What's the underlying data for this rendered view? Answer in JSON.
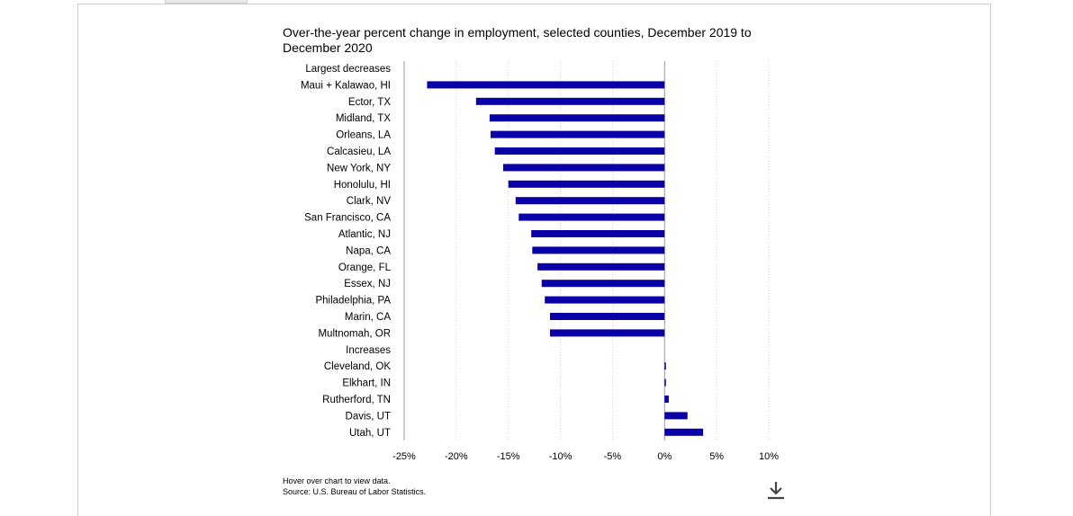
{
  "chart_data": {
    "type": "bar",
    "orientation": "horizontal",
    "title": "Over-the-year percent change in employment, selected counties, December 2019 to December 2020",
    "xlim": [
      -25,
      10
    ],
    "xticks": [
      "-25%",
      "-20%",
      "-15%",
      "-10%",
      "-5%",
      "0%",
      "5%",
      "10%"
    ],
    "grid": "vertical dotted",
    "bar_color": "#0a00a8",
    "rows": [
      {
        "label": "Largest decreases",
        "value": null,
        "header": true
      },
      {
        "label": "Maui + Kalawao, HI",
        "value": -22.8
      },
      {
        "label": "Ector, TX",
        "value": -18.1
      },
      {
        "label": "Midland, TX",
        "value": -16.8
      },
      {
        "label": "Orleans, LA",
        "value": -16.7
      },
      {
        "label": "Calcasieu, LA",
        "value": -16.3
      },
      {
        "label": "New York, NY",
        "value": -15.5
      },
      {
        "label": "Honolulu, HI",
        "value": -15.0
      },
      {
        "label": "Clark, NV",
        "value": -14.3
      },
      {
        "label": "San Francisco, CA",
        "value": -14.0
      },
      {
        "label": "Atlantic, NJ",
        "value": -12.8
      },
      {
        "label": "Napa, CA",
        "value": -12.7
      },
      {
        "label": "Orange, FL",
        "value": -12.2
      },
      {
        "label": "Essex, NJ",
        "value": -11.8
      },
      {
        "label": "Philadelphia, PA",
        "value": -11.5
      },
      {
        "label": "Marin, CA",
        "value": -11.0
      },
      {
        "label": "Multnomah, OR",
        "value": -11.0
      },
      {
        "label": "Increases",
        "value": null,
        "header": true
      },
      {
        "label": "Cleveland, OK",
        "value": 0.1
      },
      {
        "label": "Elkhart, IN",
        "value": 0.1
      },
      {
        "label": "Rutherford, TN",
        "value": 0.4
      },
      {
        "label": "Davis, UT",
        "value": 2.2
      },
      {
        "label": "Utah, UT",
        "value": 3.7
      }
    ]
  },
  "footer": {
    "hover_note": "Hover over chart to view data.",
    "source": "Source: U.S. Bureau of Labor Statistics."
  },
  "icons": {
    "download": "download-icon"
  }
}
